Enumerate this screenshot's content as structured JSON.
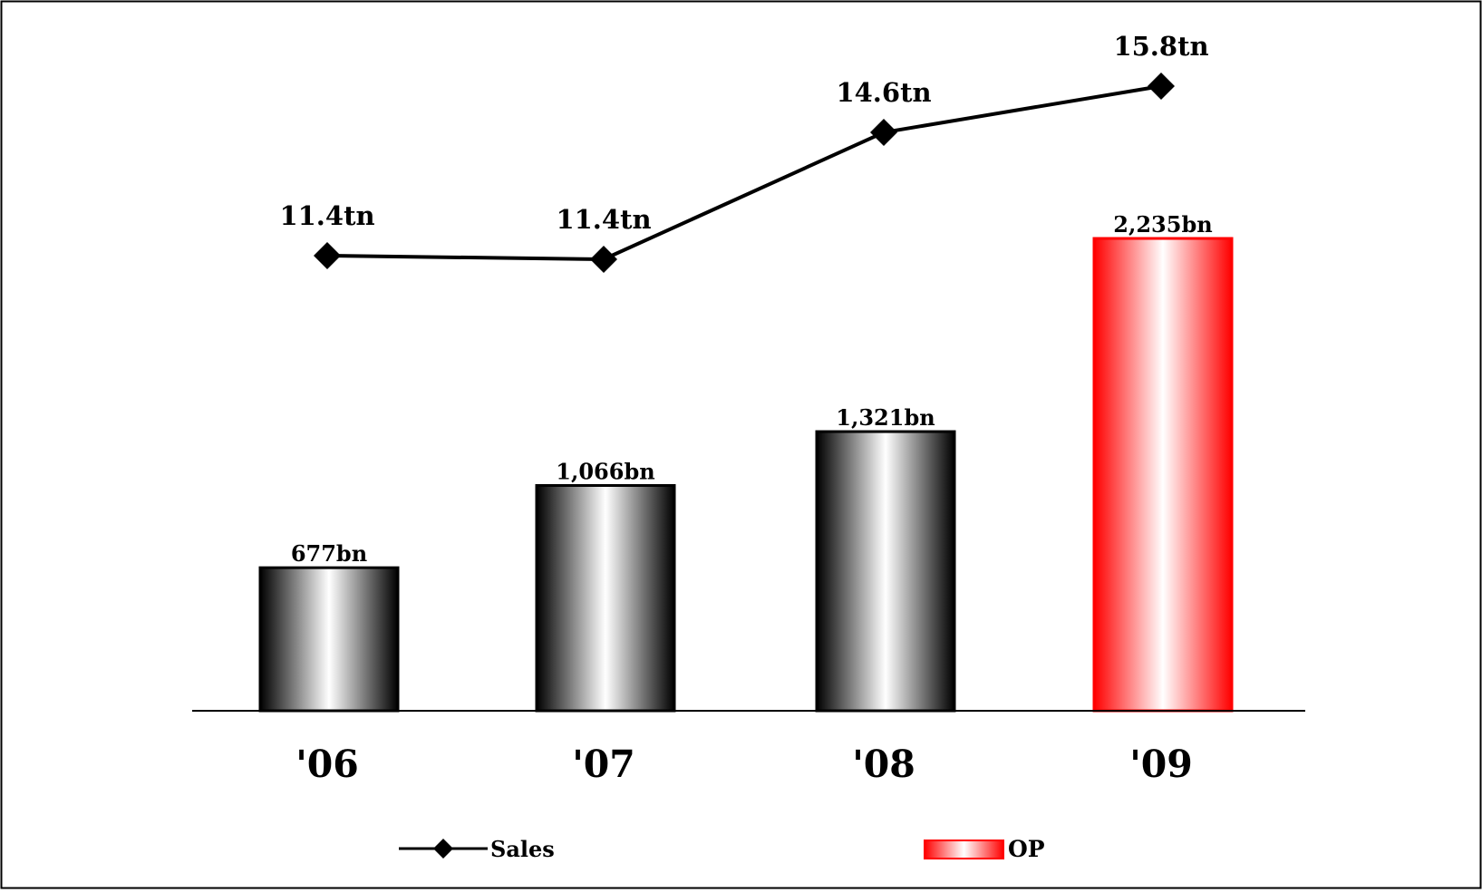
{
  "chart_data": {
    "type": "bar",
    "categories": [
      "'06",
      "'07",
      "'08",
      "'09"
    ],
    "series": [
      {
        "name": "Sales",
        "type": "line",
        "values": [
          11.4,
          11.4,
          14.6,
          15.8
        ],
        "labels": [
          "11.4tn",
          "11.4tn",
          "14.6tn",
          "15.8tn"
        ]
      },
      {
        "name": "OP",
        "type": "bar",
        "values": [
          677,
          1066,
          1321,
          2235
        ],
        "labels": [
          "677bn",
          "1,066bn",
          "1,321bn",
          "2,235bn"
        ]
      }
    ],
    "legend": {
      "placement": "bottom",
      "items": [
        "Sales",
        "OP"
      ]
    },
    "grid": false,
    "colors": {
      "bar_shade": "#000000",
      "bar_highlight": "#ffffff",
      "op_shade": "#ff0000",
      "op_highlight": "#ffffff",
      "line": "#000000",
      "axis": "#000000"
    }
  }
}
